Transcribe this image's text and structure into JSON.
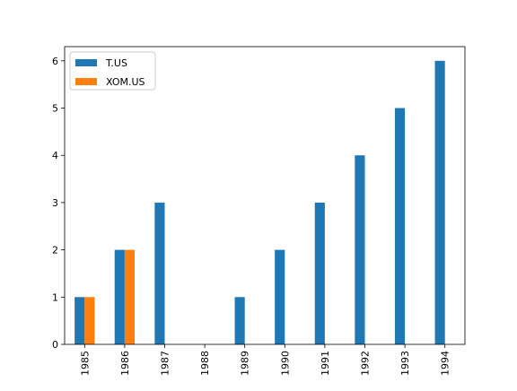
{
  "chart_data": {
    "type": "bar",
    "categories": [
      "1985",
      "1986",
      "1987",
      "1988",
      "1989",
      "1990",
      "1991",
      "1992",
      "1993",
      "1994"
    ],
    "series": [
      {
        "name": "T.US",
        "color": "#1f77b4",
        "values": [
          1,
          2,
          3,
          null,
          1,
          2,
          3,
          4,
          5,
          6
        ]
      },
      {
        "name": "XOM.US",
        "color": "#ff7f0e",
        "values": [
          1,
          2,
          null,
          null,
          null,
          null,
          null,
          null,
          null,
          null
        ]
      }
    ],
    "ylim": [
      0,
      6.3
    ],
    "yticks": [
      0,
      1,
      2,
      3,
      4,
      5,
      6
    ],
    "grid": false,
    "legend": "upper left"
  }
}
